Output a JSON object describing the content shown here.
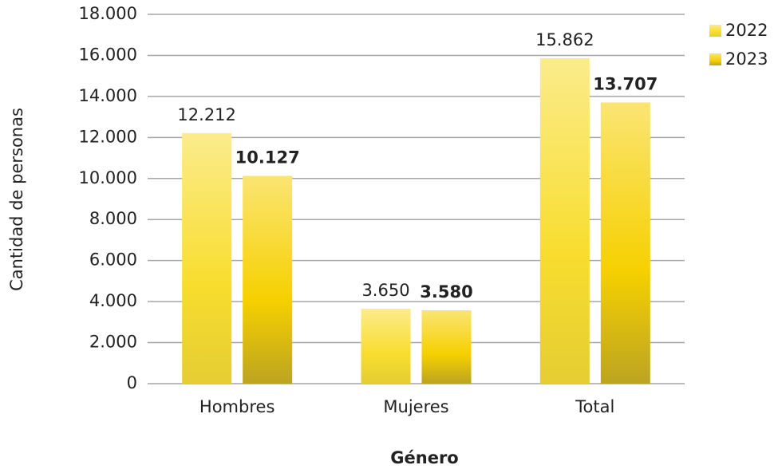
{
  "chart_data": {
    "type": "bar",
    "categories": [
      "Hombres",
      "Mujeres",
      "Total"
    ],
    "series": [
      {
        "name": "2022",
        "color": "#f8dd2e",
        "values": [
          12212,
          3650,
          15862
        ],
        "value_labels": [
          "12.212",
          "3.650",
          "15.862"
        ]
      },
      {
        "name": "2023",
        "color": "#f6d000",
        "values": [
          10127,
          3580,
          13707
        ],
        "value_labels": [
          "10.127",
          "3.580",
          "13.707"
        ]
      }
    ],
    "xlabel": "Género",
    "ylabel": "Cantidad de personas",
    "ylim": [
      0,
      18000
    ],
    "yticks": [
      0,
      {
        "value": 2000,
        "label": "2.000"
      },
      {
        "value": 4000,
        "label": "4.000"
      },
      {
        "value": 6000,
        "label": "6.000"
      },
      {
        "value": 8000,
        "label": "8.000"
      },
      {
        "value": 10000,
        "label": "10.000"
      },
      {
        "value": 12000,
        "label": "12.000"
      },
      {
        "value": 14000,
        "label": "14.000"
      },
      {
        "value": 16000,
        "label": "16.000"
      },
      {
        "value": 18000,
        "label": "18.000"
      }
    ],
    "grid": true,
    "legend": "right"
  }
}
